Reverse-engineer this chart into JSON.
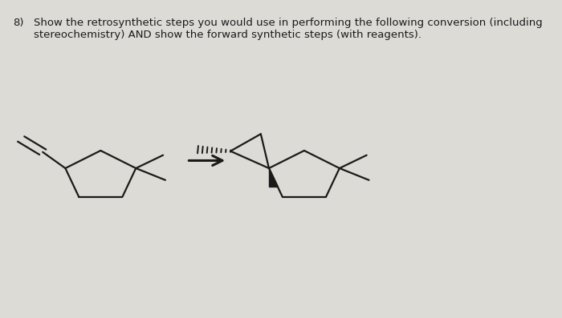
{
  "bg_color": "#dddbd6",
  "title_num": "8)",
  "title_text": "Show the retrosynthetic steps you would use in performing the following conversion (including\nstereochemistry) AND show the forward synthetic steps (with reagents).",
  "title_fontsize": 9.5,
  "line_color": "#1a1a1a"
}
